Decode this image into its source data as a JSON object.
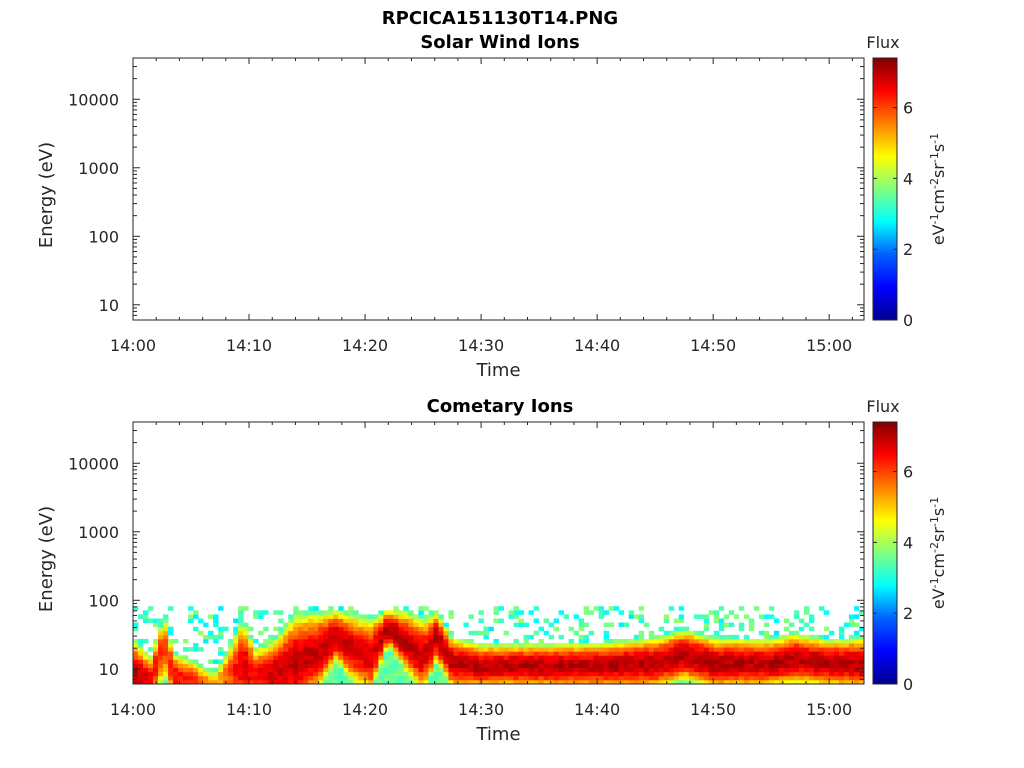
{
  "figure_title": "RPCICA151130T14.PNG",
  "colors": {
    "colormap": [
      "#00008f",
      "#0000ff",
      "#0080ff",
      "#00ffff",
      "#80ff80",
      "#ffff00",
      "#ff8000",
      "#ff0000",
      "#800000"
    ],
    "background": "#ffffff",
    "axes": "#262626"
  },
  "chart_data": [
    {
      "type": "heatmap",
      "title": "Solar Wind Ions",
      "xlabel": "Time",
      "ylabel": "Energy (eV)",
      "x_ticks": [
        "14:00",
        "14:10",
        "14:20",
        "14:30",
        "14:40",
        "14:50",
        "15:00"
      ],
      "x_range_minutes": [
        0,
        63
      ],
      "y_scale": "log",
      "y_ticks": [
        "10",
        "100",
        "1000",
        "10000"
      ],
      "y_range": [
        6,
        40000
      ],
      "colorbar": {
        "label": "Flux",
        "units": "eV-1cm-2sr-1s-1",
        "ticks": [
          "0",
          "2",
          "4",
          "6"
        ],
        "range": [
          0,
          7.4
        ]
      },
      "flux_profile": []
    },
    {
      "type": "heatmap",
      "title": "Cometary Ions",
      "xlabel": "Time",
      "ylabel": "Energy (eV)",
      "x_ticks": [
        "14:00",
        "14:10",
        "14:20",
        "14:30",
        "14:40",
        "14:50",
        "15:00"
      ],
      "x_range_minutes": [
        0,
        63
      ],
      "y_scale": "log",
      "y_ticks": [
        "10",
        "100",
        "1000",
        "10000"
      ],
      "y_range": [
        6,
        40000
      ],
      "colorbar": {
        "label": "Flux",
        "units": "eV-1cm-2sr-1s-1",
        "ticks": [
          "0",
          "2",
          "4",
          "6"
        ],
        "range": [
          0,
          7.4
        ]
      },
      "noise_ceiling_eV": 80,
      "flux_profile": [
        {
          "t": 0.0,
          "peak_eV": 8,
          "top_eV": 30,
          "peak_flux": 7.0
        },
        {
          "t": 1.5,
          "peak_eV": 7,
          "top_eV": 16,
          "peak_flux": 6.6
        },
        {
          "t": 2.7,
          "peak_eV": 22,
          "top_eV": 75,
          "peak_flux": 6.0
        },
        {
          "t": 3.5,
          "peak_eV": 8,
          "top_eV": 18,
          "peak_flux": 6.5
        },
        {
          "t": 5.2,
          "peak_eV": 7,
          "top_eV": 14,
          "peak_flux": 6.2
        },
        {
          "t": 7.0,
          "peak_eV": 6,
          "top_eV": 9,
          "peak_flux": 5.0
        },
        {
          "t": 9.5,
          "peak_eV": 12,
          "top_eV": 60,
          "peak_flux": 6.8
        },
        {
          "t": 10.5,
          "peak_eV": 8,
          "top_eV": 22,
          "peak_flux": 6.5
        },
        {
          "t": 12.0,
          "peak_eV": 9,
          "top_eV": 25,
          "peak_flux": 6.8
        },
        {
          "t": 14.0,
          "peak_eV": 12,
          "top_eV": 75,
          "peak_flux": 6.9
        },
        {
          "t": 16.0,
          "peak_eV": 18,
          "top_eV": 75,
          "peak_flux": 6.9
        },
        {
          "t": 17.5,
          "peak_eV": 30,
          "top_eV": 75,
          "peak_flux": 7.0
        },
        {
          "t": 19.0,
          "peak_eV": 20,
          "top_eV": 70,
          "peak_flux": 6.8
        },
        {
          "t": 20.5,
          "peak_eV": 15,
          "top_eV": 60,
          "peak_flux": 6.7
        },
        {
          "t": 22.0,
          "peak_eV": 40,
          "top_eV": 75,
          "peak_flux": 7.1
        },
        {
          "t": 23.5,
          "peak_eV": 25,
          "top_eV": 75,
          "peak_flux": 7.0
        },
        {
          "t": 25.0,
          "peak_eV": 15,
          "top_eV": 60,
          "peak_flux": 6.8
        },
        {
          "t": 26.2,
          "peak_eV": 30,
          "top_eV": 75,
          "peak_flux": 7.0
        },
        {
          "t": 27.5,
          "peak_eV": 12,
          "top_eV": 30,
          "peak_flux": 7.0
        },
        {
          "t": 30.0,
          "peak_eV": 11,
          "top_eV": 24,
          "peak_flux": 7.0
        },
        {
          "t": 35.0,
          "peak_eV": 11,
          "top_eV": 24,
          "peak_flux": 7.0
        },
        {
          "t": 40.0,
          "peak_eV": 11,
          "top_eV": 25,
          "peak_flux": 7.0
        },
        {
          "t": 45.0,
          "peak_eV": 12,
          "top_eV": 30,
          "peak_flux": 7.0
        },
        {
          "t": 47.5,
          "peak_eV": 16,
          "top_eV": 40,
          "peak_flux": 7.0
        },
        {
          "t": 50.0,
          "peak_eV": 12,
          "top_eV": 30,
          "peak_flux": 7.0
        },
        {
          "t": 55.0,
          "peak_eV": 12,
          "top_eV": 28,
          "peak_flux": 7.0
        },
        {
          "t": 57.0,
          "peak_eV": 14,
          "top_eV": 35,
          "peak_flux": 7.0
        },
        {
          "t": 60.0,
          "peak_eV": 12,
          "top_eV": 28,
          "peak_flux": 7.0
        },
        {
          "t": 63.0,
          "peak_eV": 12,
          "top_eV": 30,
          "peak_flux": 7.0
        }
      ]
    }
  ]
}
